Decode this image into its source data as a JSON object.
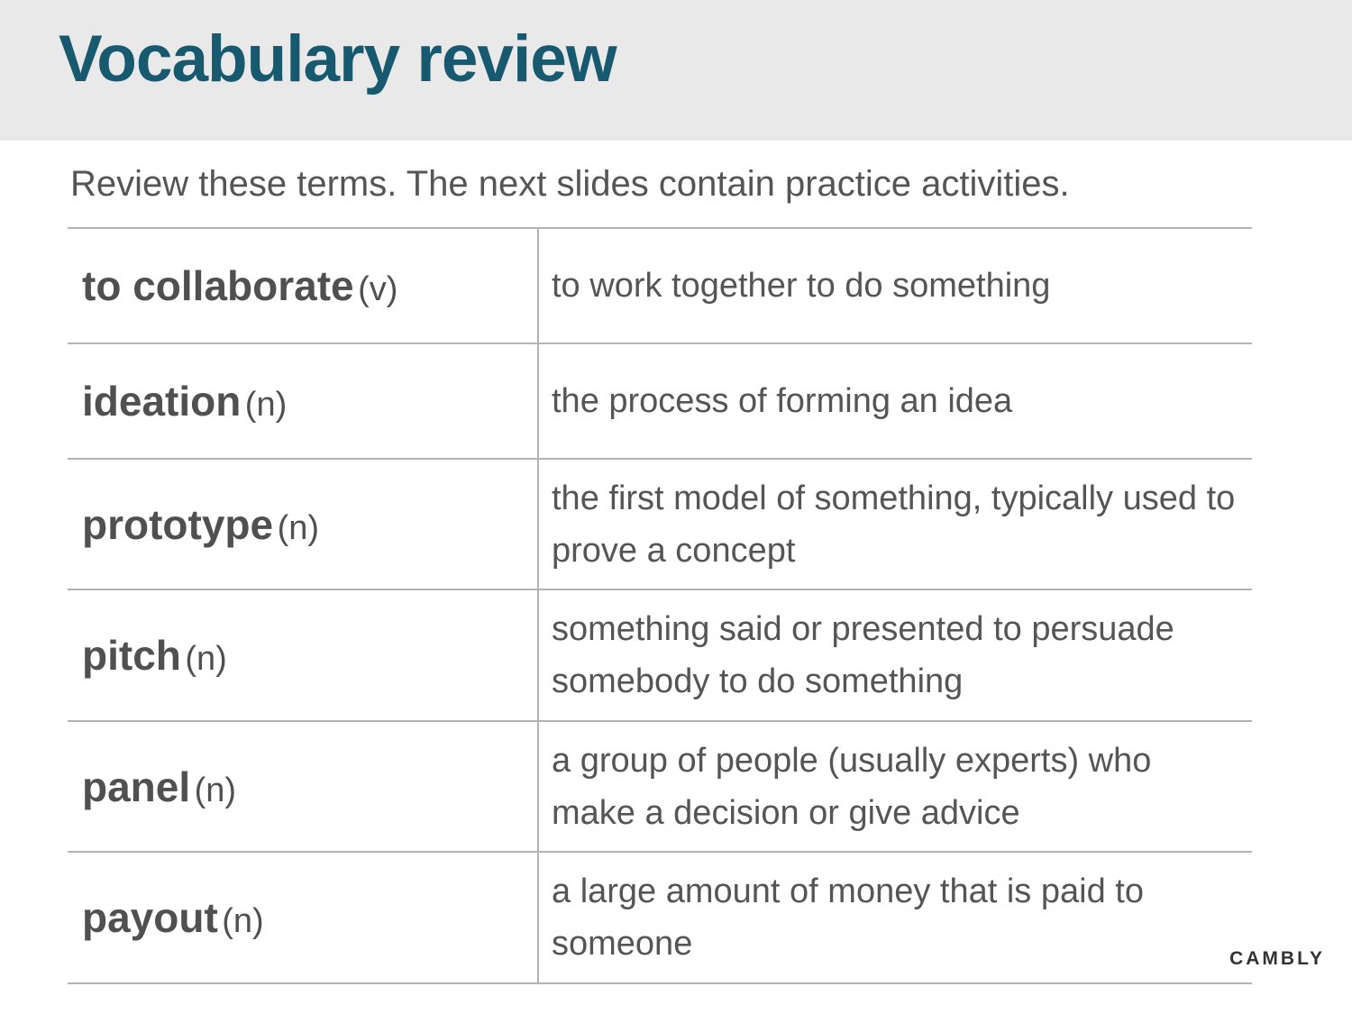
{
  "title": "Vocabulary review",
  "subtitle": "Review these terms. The next slides contain practice activities.",
  "rows": [
    {
      "term": "to collaborate",
      "pos": "(v)",
      "definition": "to work together to do something"
    },
    {
      "term": "ideation",
      "pos": "(n)",
      "definition": "the process of forming an idea"
    },
    {
      "term": "prototype",
      "pos": "(n)",
      "definition": "the first model of something, typically used to prove a concept"
    },
    {
      "term": "pitch",
      "pos": "(n)",
      "definition": "something said or presented to persuade somebody to do something"
    },
    {
      "term": "panel",
      "pos": "(n)",
      "definition": "a group of people (usually experts) who make a decision or give advice"
    },
    {
      "term": "payout",
      "pos": "(n)",
      "definition": "a large amount of money that is paid to someone"
    }
  ],
  "brand": "CAMBLY",
  "colors": {
    "title": "#17596e",
    "header_background": "#e9e9e9",
    "text": "#505050",
    "rule": "#b3b3b3"
  }
}
